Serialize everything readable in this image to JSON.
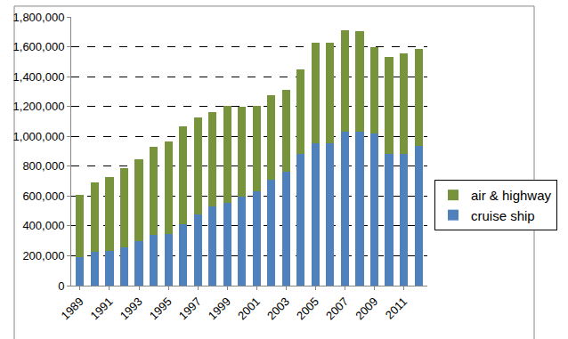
{
  "chart_data": {
    "type": "bar",
    "stacked": true,
    "categories": [
      "1989",
      null,
      "1991",
      null,
      "1993",
      null,
      "1995",
      null,
      "1997",
      null,
      "1999",
      null,
      "2001",
      null,
      "2003",
      null,
      "2005",
      null,
      "2007",
      null,
      "2009",
      null,
      "2011",
      null
    ],
    "series": [
      {
        "name": "cruise ship",
        "color": "#4f81bd",
        "values": [
          190000,
          225000,
          235000,
          255000,
          300000,
          340000,
          345000,
          410000,
          475000,
          530000,
          555000,
          595000,
          630000,
          710000,
          760000,
          880000,
          955000,
          955000,
          1030000,
          1030000,
          1020000,
          885000,
          885000,
          935000
        ]
      },
      {
        "name": "air & highway",
        "color": "#77933c",
        "values": [
          420000,
          465000,
          490000,
          530000,
          545000,
          590000,
          620000,
          655000,
          650000,
          630000,
          650000,
          605000,
          575000,
          565000,
          550000,
          570000,
          675000,
          675000,
          680000,
          675000,
          580000,
          645000,
          670000,
          650000
        ]
      }
    ],
    "ylim": [
      0,
      1800000
    ],
    "yticks": [
      0,
      {
        "value": 200000,
        "label": "200,000"
      },
      {
        "value": 400000,
        "label": "400,000"
      },
      {
        "value": 600000,
        "label": "600,000"
      },
      {
        "value": 800000,
        "label": "800,000"
      },
      {
        "value": 1000000,
        "label": "1,000,000"
      },
      {
        "value": 1200000,
        "label": "1,200,000"
      },
      {
        "value": 1400000,
        "label": "1,400,000"
      },
      {
        "value": 1600000,
        "label": "1,600,000"
      },
      {
        "value": 1800000,
        "label": "1,800,000"
      }
    ],
    "grid": true,
    "legend": "right"
  }
}
